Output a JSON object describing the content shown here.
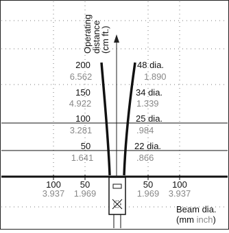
{
  "axis": {
    "y_title_lines": [
      "Operating",
      "distance",
      "(cm ft.)"
    ],
    "x_title_lines": [
      "Beam dia.",
      "(mm inch)"
    ]
  },
  "distances": [
    {
      "cm": "200",
      "ft": "6.562"
    },
    {
      "cm": "150",
      "ft": "4.922"
    },
    {
      "cm": "100",
      "ft": "3.281"
    },
    {
      "cm": "50",
      "ft": "1.641"
    }
  ],
  "diameters": [
    {
      "mm": "48 dia.",
      "inch": "1.890"
    },
    {
      "mm": "34 dia.",
      "inch": "1.339"
    },
    {
      "mm": "25 dia.",
      "inch": ".984"
    },
    {
      "mm": "22 dia.",
      "inch": ".866"
    }
  ],
  "beam_scale": {
    "left": [
      {
        "mm": "100",
        "inch": "3.937"
      },
      {
        "mm": "50",
        "inch": "1.969"
      }
    ],
    "right": [
      {
        "mm": "50",
        "inch": "1.969"
      },
      {
        "mm": "100",
        "inch": "3.937"
      }
    ]
  },
  "colors": {
    "primary": "#111111",
    "secondary": "#888888"
  },
  "icons": {
    "sensor": "photoelectric-sensor-icon"
  }
}
